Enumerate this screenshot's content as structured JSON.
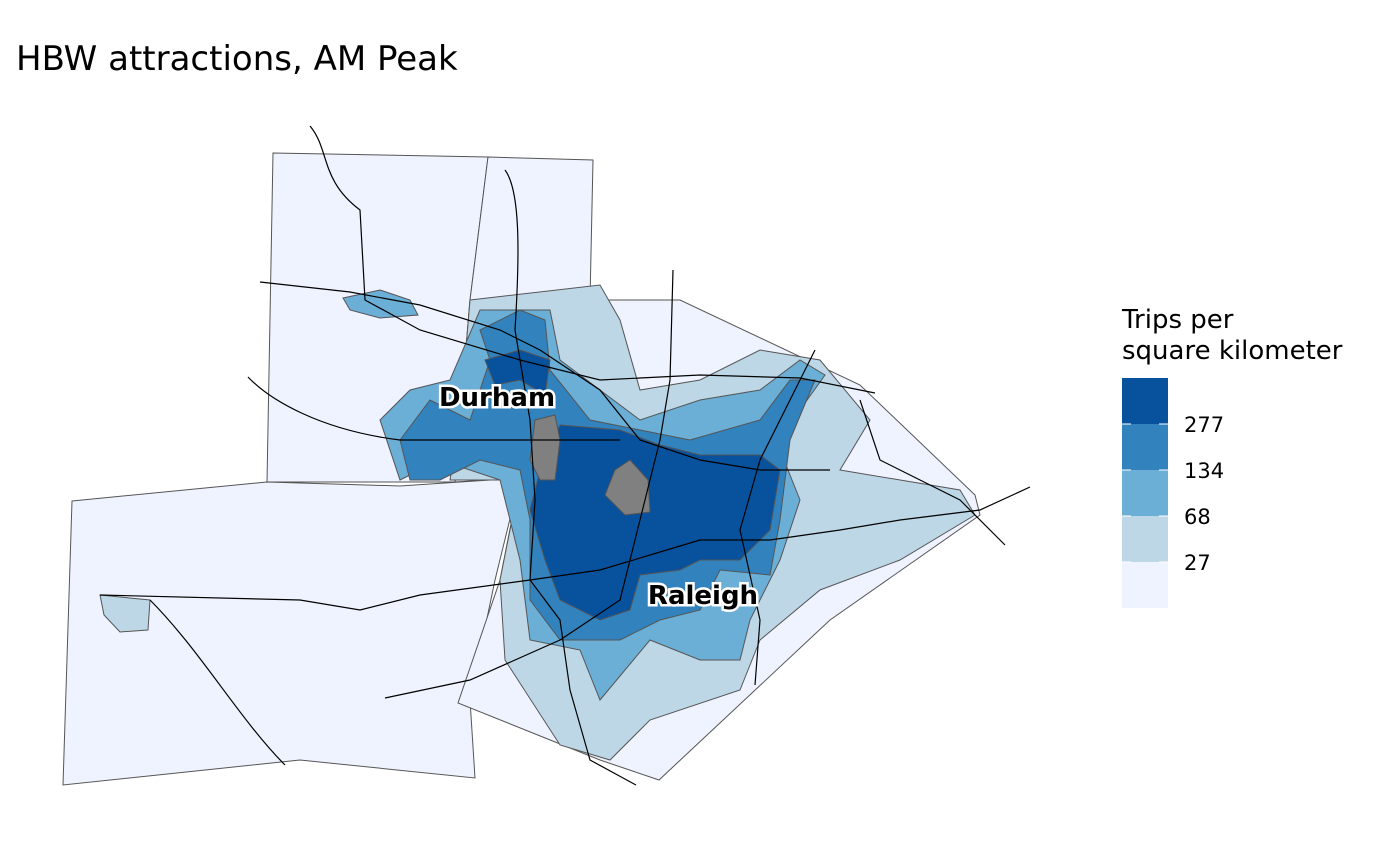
{
  "title": "HBW attractions, AM Peak",
  "legend": {
    "title_lines": [
      "Trips per",
      "square kilometer"
    ],
    "breaks": [
      27,
      68,
      134,
      277
    ],
    "colors": [
      "#eff3ff",
      "#bdd7e7",
      "#6baed6",
      "#3182bd",
      "#08519c"
    ]
  },
  "places": [
    "Durham",
    "Raleigh"
  ]
}
